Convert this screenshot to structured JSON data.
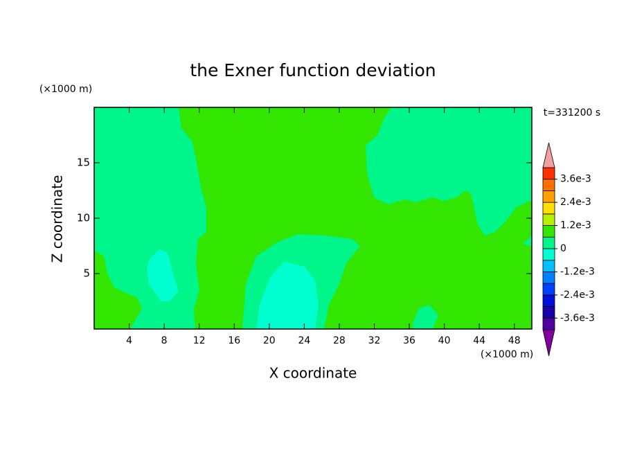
{
  "chart_data": {
    "type": "contour",
    "title": "the Exner function deviation",
    "xlabel": "X coordinate",
    "ylabel": "Z coordinate",
    "xunit": "(×1000 m)",
    "yunit": "(×1000 m)",
    "time_label": "t=331200 s",
    "xlim": [
      0,
      50
    ],
    "xticks": [
      4,
      8,
      12,
      16,
      20,
      24,
      28,
      32,
      36,
      40,
      44,
      48
    ],
    "ylim": [
      0,
      20
    ],
    "yticks": [
      5,
      10,
      15
    ],
    "colorbar": {
      "levels": [
        -0.0042,
        -0.0036,
        -0.003,
        -0.0024,
        -0.0018,
        -0.0012,
        -0.0006,
        0,
        0.0006,
        0.0012,
        0.0018,
        0.0024,
        0.003,
        0.0036,
        0.0042
      ],
      "colors": [
        "#5000a0",
        "#1a00a8",
        "#0010d8",
        "#0040ff",
        "#0080ff",
        "#00c0ff",
        "#00ffd0",
        "#00f58a",
        "#33e600",
        "#b8f000",
        "#ffe000",
        "#ffa000",
        "#ff7000",
        "#ff3000"
      ],
      "over_color": "#f0a0a0",
      "under_color": "#8000a0",
      "ticks": [
        {
          "value": -0.0036,
          "label": "-3.6e-3"
        },
        {
          "value": -0.0024,
          "label": "-2.4e-3"
        },
        {
          "value": -0.0012,
          "label": "-1.2e-3"
        },
        0,
        {
          "value": 0.0012,
          "label": "1.2e-3"
        },
        {
          "value": 0.0024,
          "label": "2.4e-3"
        },
        {
          "value": 0.0036,
          "label": "3.6e-3"
        }
      ]
    }
  }
}
